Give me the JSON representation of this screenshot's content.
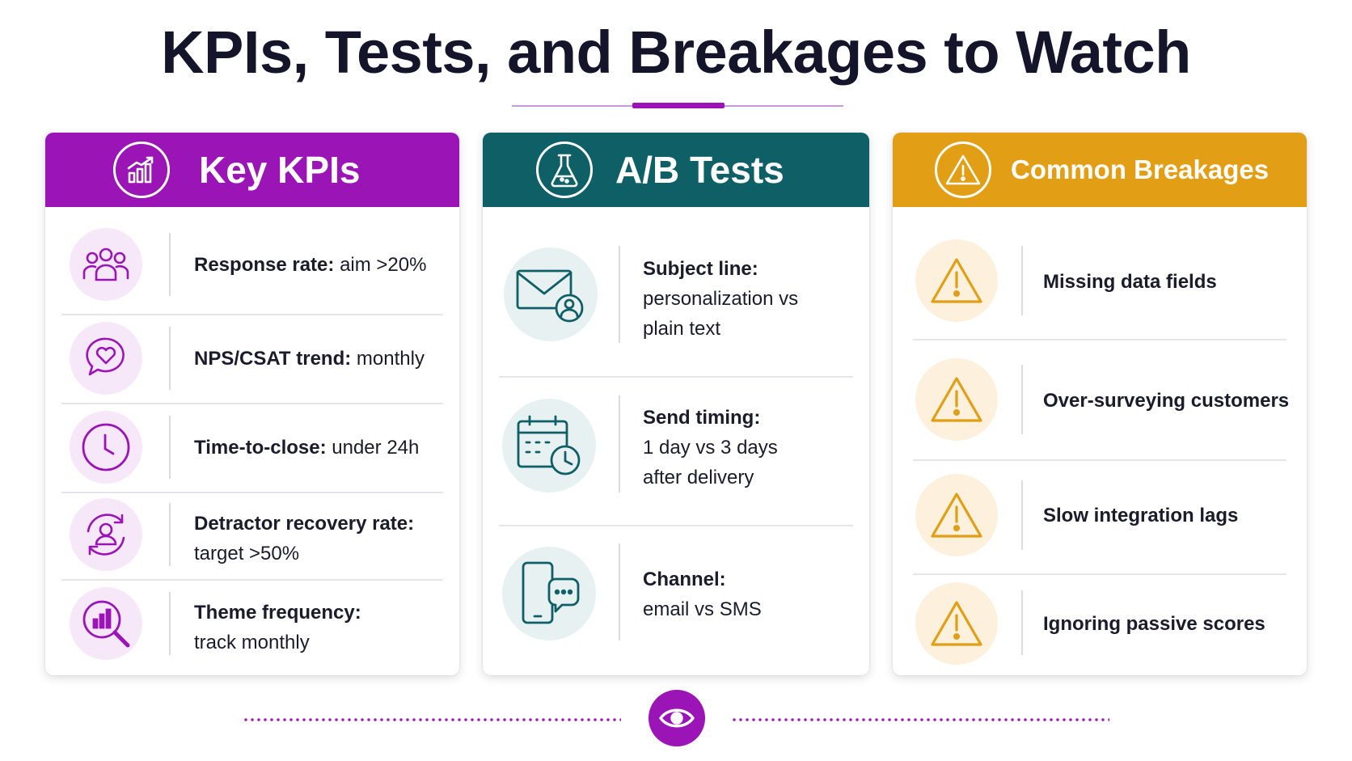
{
  "title": "KPIs, Tests, and Breakages to Watch",
  "colors": {
    "kpi": "#9b14b6",
    "ab": "#0f5f66",
    "breakages": "#e29e14",
    "text": "#14142b"
  },
  "columns": {
    "kpi": {
      "title": "Key KPIs",
      "header_icon": "chart-growth-icon",
      "items": [
        {
          "icon": "people-group-icon",
          "label": "Response rate:",
          "value": "aim >20%"
        },
        {
          "icon": "heart-chat-icon",
          "label": "NPS/CSAT trend:",
          "value": "monthly"
        },
        {
          "icon": "clock-icon",
          "label": "Time-to-close:",
          "value": "under 24h"
        },
        {
          "icon": "user-recovery-icon",
          "label": "Detractor recovery rate:",
          "value": "target >50%"
        },
        {
          "icon": "chart-magnifier-icon",
          "label": "Theme frequency:",
          "value": "track monthly"
        }
      ]
    },
    "ab": {
      "title": "A/B Tests",
      "header_icon": "flask-icon",
      "items": [
        {
          "icon": "mail-user-icon",
          "label": "Subject line:",
          "value_line1": "personalization vs",
          "value_line2": "plain text"
        },
        {
          "icon": "calendar-clock-icon",
          "label": "Send timing:",
          "value_line1": "1 day vs 3 days",
          "value_line2": "after delivery"
        },
        {
          "icon": "phone-chat-icon",
          "label": "Channel:",
          "value_line1": "email vs SMS"
        }
      ]
    },
    "breakages": {
      "title": "Common Breakages",
      "header_icon": "warning-icon",
      "items": [
        {
          "icon": "warning-icon",
          "label": "Missing data fields"
        },
        {
          "icon": "warning-icon",
          "label": "Over-surveying customers"
        },
        {
          "icon": "warning-icon",
          "label": "Slow integration lags"
        },
        {
          "icon": "warning-icon",
          "label": "Ignoring passive scores"
        }
      ]
    }
  },
  "footer_icon": "eye-icon"
}
